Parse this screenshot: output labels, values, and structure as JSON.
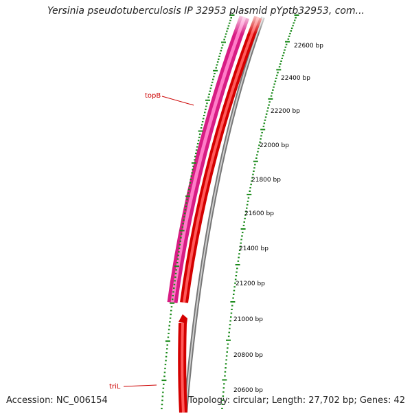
{
  "header": {
    "title": "Yersinia pseudotuberculosis IP 32953 plasmid pYptb32953, com..."
  },
  "footer": {
    "accession": "Accession: NC_006154",
    "summary": "Topology: circular; Length: 27,702 bp; Genes: 42"
  },
  "map": {
    "ruler_labels": [
      "22600 bp",
      "22400 bp",
      "22200 bp",
      "22000 bp",
      "21800 bp",
      "21600 bp",
      "21400 bp",
      "21200 bp",
      "21000 bp",
      "20800 bp",
      "20600 bp"
    ],
    "gene_labels": [
      "topB",
      "triL"
    ],
    "colors": {
      "topB_gene": "#ee2a9a",
      "cds": "#ff0000",
      "backbone": "#8c8c8c",
      "ticks": "#1a8a1a",
      "gene_label": "#cc0000"
    }
  }
}
